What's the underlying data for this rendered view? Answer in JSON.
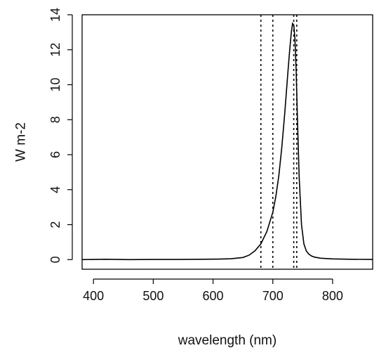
{
  "chart_data": {
    "type": "line",
    "title": "",
    "xlabel": "wavelength (nm)",
    "ylabel": "W m-2",
    "xlim": [
      381,
      867
    ],
    "ylim": [
      -0.55,
      14
    ],
    "x_ticks": [
      400,
      500,
      600,
      700,
      800
    ],
    "y_ticks": [
      0,
      2,
      4,
      6,
      8,
      10,
      12,
      14
    ],
    "grid": false,
    "legend": "none",
    "line_color": "#000000",
    "vlines": [
      680,
      700,
      735,
      740
    ],
    "vline_style": "dotted",
    "series": [
      {
        "x": [
          381,
          420,
          460,
          500,
          540,
          580,
          610,
          630,
          650,
          660,
          670,
          680,
          690,
          700,
          705,
          710,
          715,
          720,
          725,
          728,
          731,
          733,
          735,
          737,
          739,
          741,
          744,
          748,
          752,
          756,
          760,
          765,
          770,
          780,
          800,
          830,
          867
        ],
        "y": [
          0.0,
          0.02,
          0.0,
          0.01,
          0.01,
          0.02,
          0.03,
          0.05,
          0.12,
          0.25,
          0.5,
          0.9,
          1.6,
          2.7,
          3.6,
          4.8,
          6.4,
          8.4,
          10.6,
          11.9,
          13.0,
          13.5,
          13.4,
          12.6,
          10.8,
          8.2,
          4.8,
          2.0,
          0.9,
          0.5,
          0.32,
          0.2,
          0.14,
          0.08,
          0.04,
          0.02,
          0.01
        ]
      }
    ]
  }
}
